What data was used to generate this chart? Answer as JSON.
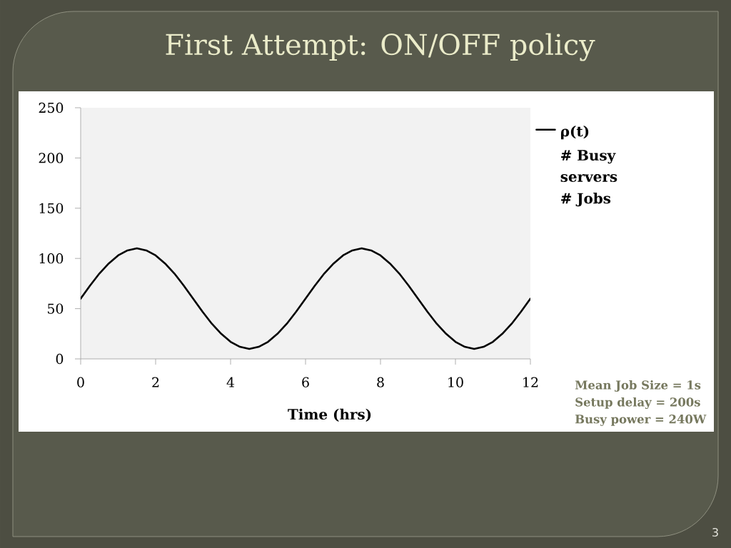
{
  "chart_data": {
    "type": "line",
    "title": "First Attempt: ON/OFF policy",
    "xlabel": "Time (hrs)",
    "x": [
      0,
      0.25,
      0.5,
      0.75,
      1,
      1.25,
      1.5,
      1.75,
      2,
      2.25,
      2.5,
      2.75,
      3,
      3.25,
      3.5,
      3.75,
      4,
      4.25,
      4.5,
      4.75,
      5,
      5.25,
      5.5,
      5.75,
      6,
      6.25,
      6.5,
      6.75,
      7,
      7.25,
      7.5,
      7.75,
      8,
      8.25,
      8.5,
      8.75,
      9,
      9.25,
      9.5,
      9.75,
      10,
      10.25,
      10.5,
      10.75,
      11,
      11.25,
      11.5,
      11.75,
      12
    ],
    "series": [
      {
        "name": "ρ(t)",
        "color": "#000000",
        "values": [
          60,
          73,
          85,
          95,
          103,
          108,
          110,
          108,
          103,
          95,
          85,
          73,
          60,
          47,
          35,
          25,
          17,
          12,
          10,
          12,
          17,
          25,
          35,
          47,
          60,
          73,
          85,
          95,
          103,
          108,
          110,
          108,
          103,
          95,
          85,
          73,
          60,
          47,
          35,
          25,
          17,
          12,
          10,
          12,
          17,
          25,
          35,
          47,
          60
        ]
      },
      {
        "name": "# Busy servers",
        "values": [
          null,
          null,
          null,
          null,
          null,
          null,
          null,
          null,
          null,
          null,
          null,
          null,
          null,
          null,
          null,
          null,
          null,
          null,
          null,
          null,
          null,
          null,
          null,
          null,
          null,
          null,
          null,
          null,
          null,
          null,
          null,
          null,
          null,
          null,
          null,
          null,
          null,
          null,
          null,
          null,
          null,
          null,
          null,
          null,
          null,
          null,
          null,
          null,
          null
        ]
      },
      {
        "name": "# Jobs",
        "values": [
          null,
          null,
          null,
          null,
          null,
          null,
          null,
          null,
          null,
          null,
          null,
          null,
          null,
          null,
          null,
          null,
          null,
          null,
          null,
          null,
          null,
          null,
          null,
          null,
          null,
          null,
          null,
          null,
          null,
          null,
          null,
          null,
          null,
          null,
          null,
          null,
          null,
          null,
          null,
          null,
          null,
          null,
          null,
          null,
          null,
          null,
          null,
          null,
          null
        ]
      }
    ],
    "xlim": [
      0,
      12
    ],
    "xticks": [
      0,
      2,
      4,
      6,
      8,
      10,
      12
    ],
    "ylim": [
      0,
      250
    ],
    "yticks": [
      0,
      50,
      100,
      150,
      200,
      250
    ],
    "grid": false,
    "legend": "right",
    "marker": "none",
    "line_style": "solid",
    "annotations": [
      "Mean Job Size = 1s",
      "Setup delay = 200s",
      "Busy power = 240W",
      "3"
    ]
  }
}
